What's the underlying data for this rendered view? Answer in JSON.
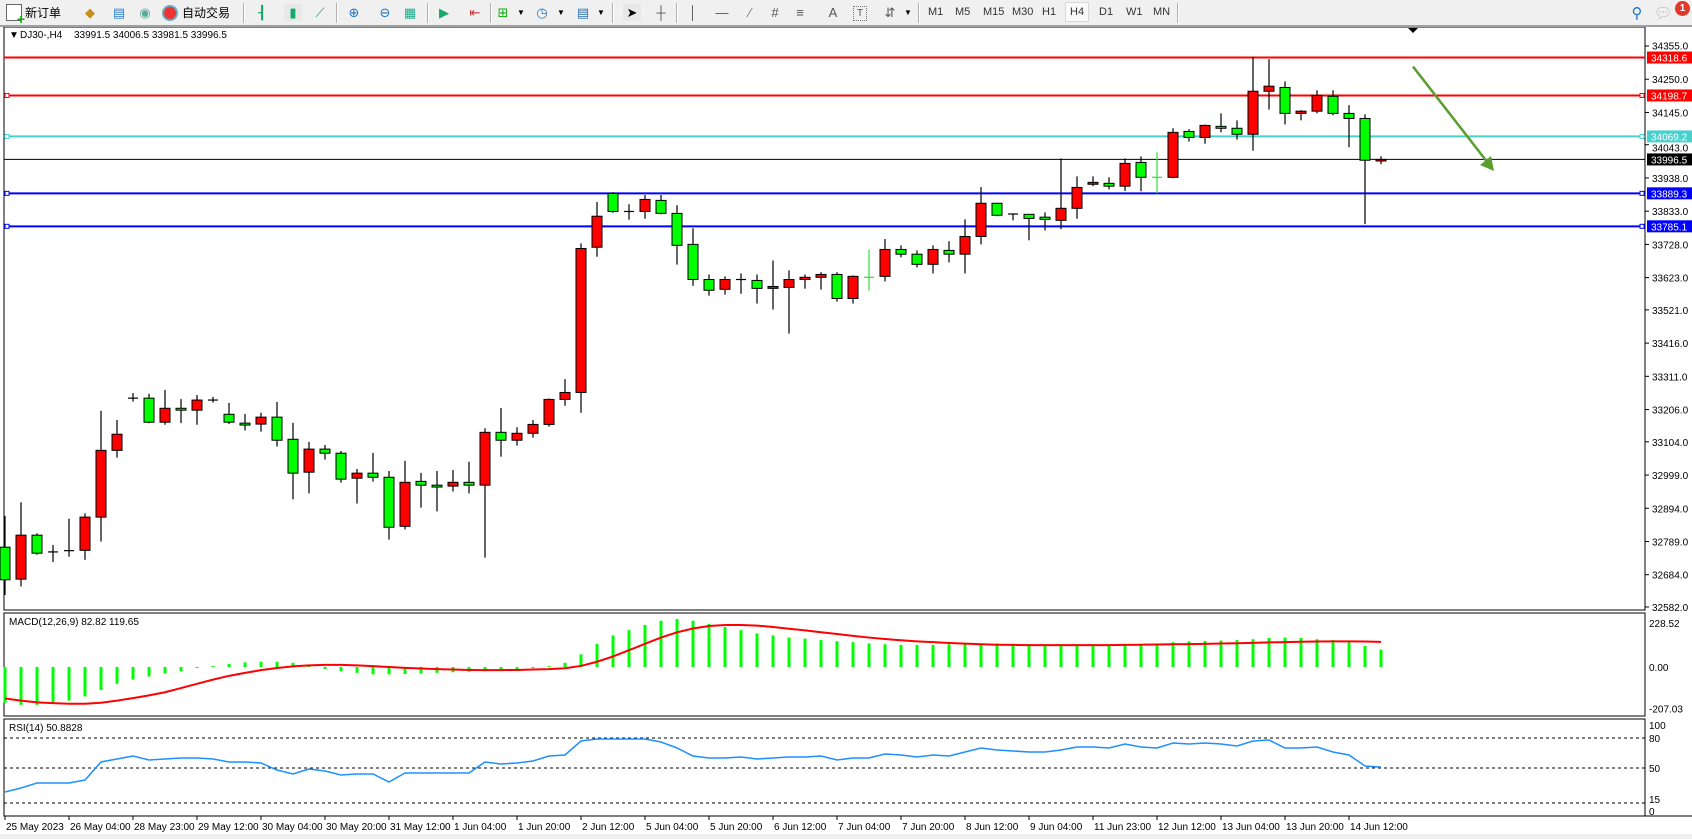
{
  "toolbar": {
    "new_order_label": "新订单",
    "auto_trading_label": "自动交易",
    "icons": [
      "new-order-icon",
      "metaeditor-icon",
      "market-watch-icon",
      "signals-icon",
      "auto-trading-icon",
      "bar-chart-icon",
      "candlestick-icon",
      "line-chart-icon",
      "zoom-in-icon",
      "zoom-out-icon",
      "tile-windows-icon",
      "autoscroll-icon",
      "chart-shift-icon",
      "new-chart-icon",
      "clock-icon",
      "indicators-icon",
      "cursor-icon",
      "crosshair-icon",
      "vertical-line-icon",
      "horizontal-line-icon",
      "trendline-icon",
      "equidistant-channel-icon",
      "fibonacci-icon",
      "text-icon",
      "text-label-icon",
      "arrows-icon",
      "search-icon",
      "chat-icon"
    ],
    "text_tool": "A",
    "timeframes": [
      "M1",
      "M5",
      "M15",
      "M30",
      "H1",
      "H4",
      "D1",
      "W1",
      "MN"
    ],
    "active_timeframe": "H4",
    "notification_count": "1"
  },
  "header": {
    "symbol": "DJ30-,H4",
    "ohlc": "33991.5 34006.5 33981.5 33996.5"
  },
  "colors": {
    "bull_body": "#ff0000",
    "bear_body": "#00ff00",
    "doji_alt": "#33dd33",
    "resistance": "#ff0000",
    "pivot": "#48d1cc",
    "support": "#0000ff",
    "bid": "#000000",
    "macd_hist": "#00ff00",
    "macd_signal": "#ff0000",
    "rsi": "#1e90ff",
    "arrow": "#5a9e2f"
  },
  "chart_data": [
    {
      "type": "candlestick",
      "title": "DJ30-,H4",
      "ylim": [
        32582,
        34355
      ],
      "price_ticks": [
        "34355.0",
        "34250.0",
        "34145.0",
        "34043.0",
        "33938.0",
        "33833.0",
        "33728.0",
        "33623.0",
        "33521.0",
        "33416.0",
        "33311.0",
        "33206.0",
        "33104.0",
        "32999.0",
        "32894.0",
        "32789.0",
        "32684.0",
        "32582.0"
      ],
      "time_labels": [
        "25 May 2023",
        "26 May 04:00",
        "28 May 23:00",
        "29 May 12:00",
        "30 May 04:00",
        "30 May 20:00",
        "31 May 12:00",
        "1 Jun 04:00",
        "1 Jun 20:00",
        "2 Jun 12:00",
        "5 Jun 04:00",
        "5 Jun 20:00",
        "6 Jun 12:00",
        "7 Jun 04:00",
        "7 Jun 20:00",
        "8 Jun 12:00",
        "9 Jun 04:00",
        "11 Jun 23:00",
        "12 Jun 12:00",
        "13 Jun 04:00",
        "13 Jun 20:00",
        "14 Jun 12:00"
      ],
      "alt_doji_bars": [
        54,
        72
      ],
      "candles_ohlc": [
        [
          32771,
          32870,
          32620,
          32668
        ],
        [
          32670,
          32913,
          32647,
          32809
        ],
        [
          32809,
          32815,
          32747,
          32752
        ],
        [
          32756,
          32778,
          32724,
          32756
        ],
        [
          32760,
          32861,
          32741,
          32760
        ],
        [
          32761,
          32878,
          32731,
          32866
        ],
        [
          32866,
          33202,
          32789,
          33077
        ],
        [
          33077,
          33173,
          33054,
          33128
        ],
        [
          33242,
          33258,
          33231,
          33242
        ],
        [
          33242,
          33256,
          33163,
          33166
        ],
        [
          33166,
          33268,
          33158,
          33210
        ],
        [
          33210,
          33239,
          33163,
          33204
        ],
        [
          33204,
          33252,
          33158,
          33236
        ],
        [
          33236,
          33246,
          33228,
          33236
        ],
        [
          33191,
          33227,
          33160,
          33166
        ],
        [
          33163,
          33192,
          33140,
          33157
        ],
        [
          33160,
          33196,
          33136,
          33182
        ],
        [
          33182,
          33230,
          33089,
          33109
        ],
        [
          33112,
          33164,
          32922,
          33005
        ],
        [
          33008,
          33104,
          32941,
          33081
        ],
        [
          33081,
          33094,
          33048,
          33068
        ],
        [
          33068,
          33075,
          32975,
          32986
        ],
        [
          32989,
          33018,
          32909,
          33005
        ],
        [
          33005,
          33069,
          32978,
          32992
        ],
        [
          32992,
          33012,
          32795,
          32834
        ],
        [
          32837,
          33044,
          32827,
          32976
        ],
        [
          32979,
          33006,
          32896,
          32967
        ],
        [
          32967,
          33012,
          32884,
          32961
        ],
        [
          32964,
          33015,
          32947,
          32976
        ],
        [
          32976,
          33041,
          32941,
          32967
        ],
        [
          32967,
          33147,
          32738,
          33134
        ],
        [
          33134,
          33211,
          33057,
          33109
        ],
        [
          33109,
          33150,
          33092,
          33131
        ],
        [
          33131,
          33173,
          33117,
          33159
        ],
        [
          33159,
          33241,
          33152,
          33238
        ],
        [
          33238,
          33302,
          33218,
          33260
        ],
        [
          33260,
          33731,
          33196,
          33715
        ],
        [
          33719,
          33862,
          33689,
          33817
        ],
        [
          33889,
          33893,
          33828,
          33832
        ],
        [
          33832,
          33855,
          33806,
          33832
        ],
        [
          33832,
          33884,
          33809,
          33870
        ],
        [
          33867,
          33884,
          33823,
          33826
        ],
        [
          33826,
          33852,
          33664,
          33725
        ],
        [
          33728,
          33779,
          33597,
          33617
        ],
        [
          33617,
          33633,
          33566,
          33583
        ],
        [
          33586,
          33627,
          33569,
          33617
        ],
        [
          33617,
          33636,
          33572,
          33617
        ],
        [
          33614,
          33633,
          33541,
          33589
        ],
        [
          33589,
          33677,
          33522,
          33595
        ],
        [
          33592,
          33646,
          33446,
          33617
        ],
        [
          33617,
          33633,
          33588,
          33624
        ],
        [
          33624,
          33640,
          33585,
          33633
        ],
        [
          33633,
          33640,
          33547,
          33557
        ],
        [
          33557,
          33630,
          33541,
          33627
        ],
        [
          33624,
          33712,
          33582,
          33624
        ],
        [
          33627,
          33745,
          33611,
          33712
        ],
        [
          33712,
          33725,
          33687,
          33697
        ],
        [
          33697,
          33709,
          33655,
          33665
        ],
        [
          33665,
          33725,
          33636,
          33712
        ],
        [
          33709,
          33738,
          33671,
          33697
        ],
        [
          33697,
          33807,
          33636,
          33753
        ],
        [
          33753,
          33909,
          33728,
          33858
        ],
        [
          33858,
          33858,
          33817,
          33820
        ],
        [
          33824,
          33826,
          33804,
          33824
        ],
        [
          33823,
          33823,
          33741,
          33810
        ],
        [
          33814,
          33829,
          33772,
          33807
        ],
        [
          33804,
          34000,
          33776,
          33842
        ],
        [
          33842,
          33943,
          33809,
          33908
        ],
        [
          33918,
          33943,
          33912,
          33924
        ],
        [
          33921,
          33940,
          33902,
          33912
        ],
        [
          33912,
          34000,
          33897,
          33984
        ],
        [
          33987,
          34006,
          33896,
          33940
        ],
        [
          33940,
          34019,
          33889,
          33940
        ],
        [
          33940,
          34095,
          33937,
          34082
        ],
        [
          34085,
          34092,
          34053,
          34066
        ],
        [
          34066,
          34107,
          34046,
          34104
        ],
        [
          34101,
          34142,
          34082,
          34095
        ],
        [
          34095,
          34120,
          34059,
          34076
        ],
        [
          34076,
          34321,
          34024,
          34212
        ],
        [
          34212,
          34313,
          34154,
          34228
        ],
        [
          34224,
          34243,
          34107,
          34142
        ],
        [
          34142,
          34152,
          34120,
          34149
        ],
        [
          34149,
          34215,
          34142,
          34199
        ],
        [
          34196,
          34215,
          34136,
          34142
        ],
        [
          34142,
          34168,
          34035,
          34126
        ],
        [
          34126,
          34139,
          33792,
          33994
        ],
        [
          33991.5,
          34006.5,
          33981.5,
          33996.5
        ]
      ],
      "levels": [
        {
          "price": 34318.6,
          "label": "34318.6",
          "kind": "resistance",
          "handles": false
        },
        {
          "price": 34198.7,
          "label": "34198.7",
          "kind": "resistance",
          "handles": true
        },
        {
          "price": 34069.2,
          "label": "34069.2",
          "kind": "pivot",
          "handles": true
        },
        {
          "price": 33996.5,
          "label": "33996.5",
          "kind": "bid",
          "handles": false
        },
        {
          "price": 33889.3,
          "label": "33889.3",
          "kind": "support",
          "handles": true
        },
        {
          "price": 33785.1,
          "label": "33785.1",
          "kind": "support",
          "handles": true
        }
      ],
      "annotation_arrow": {
        "direction": "down-right",
        "from_price": 34290,
        "to_price": 33960
      }
    },
    {
      "type": "bar+line",
      "title": "MACD(12,26,9) 82.82 119.65",
      "ylim": [
        -207.03,
        228.52
      ],
      "tick_labels": [
        "228.52",
        "0.00",
        "-207.03"
      ],
      "histogram": [
        -170,
        -180,
        -180,
        -175,
        -160,
        -140,
        -110,
        -80,
        -60,
        -45,
        -30,
        -20,
        -5,
        5,
        15,
        22,
        25,
        25,
        20,
        5,
        -10,
        -20,
        -28,
        -35,
        -35,
        -33,
        -32,
        -28,
        -25,
        -22,
        -20,
        -15,
        -10,
        -5,
        5,
        20,
        60,
        110,
        150,
        175,
        200,
        220,
        228,
        220,
        205,
        190,
        175,
        160,
        150,
        140,
        135,
        128,
        122,
        118,
        112,
        108,
        105,
        105,
        105,
        108,
        110,
        112,
        112,
        110,
        108,
        106,
        105,
        105,
        106,
        107,
        108,
        110,
        112,
        118,
        122,
        124,
        126,
        128,
        132,
        138,
        140,
        138,
        132,
        128,
        120,
        100,
        82.82
      ],
      "signal": [
        -150,
        -160,
        -168,
        -172,
        -175,
        -175,
        -170,
        -160,
        -148,
        -135,
        -120,
        -100,
        -80,
        -60,
        -42,
        -28,
        -15,
        -5,
        3,
        8,
        10,
        10,
        8,
        4,
        0,
        -4,
        -7,
        -10,
        -12,
        -14,
        -15,
        -15,
        -14,
        -12,
        -10,
        -6,
        5,
        25,
        50,
        80,
        110,
        140,
        165,
        183,
        195,
        200,
        200,
        197,
        190,
        182,
        174,
        165,
        157,
        148,
        140,
        133,
        127,
        122,
        118,
        114,
        111,
        108,
        106,
        105,
        104,
        104,
        104,
        104,
        104,
        104,
        105,
        106,
        107,
        108,
        109,
        110,
        112,
        113,
        115,
        117,
        118,
        120,
        121,
        122,
        122,
        121,
        119.65
      ]
    },
    {
      "type": "line",
      "title": "RSI(14) 50.8828",
      "ylim": [
        0,
        100
      ],
      "tick_labels": [
        "100",
        "80",
        "50",
        "15",
        "0"
      ],
      "levels": [
        80,
        50,
        15
      ],
      "values": [
        26,
        30,
        35,
        35,
        35,
        38,
        56,
        59,
        62,
        58,
        59,
        60,
        60,
        59,
        56,
        56,
        55,
        48,
        44,
        49,
        47,
        43,
        44,
        44,
        36,
        45,
        45,
        45,
        45,
        45,
        56,
        54,
        55,
        57,
        62,
        63,
        77,
        79,
        79,
        79,
        79,
        76,
        70,
        62,
        60,
        60,
        61,
        59,
        60,
        61,
        61,
        62,
        58,
        60,
        60,
        64,
        63,
        61,
        63,
        62,
        66,
        70,
        68,
        67,
        66,
        66,
        68,
        71,
        71,
        70,
        74,
        71,
        70,
        75,
        74,
        75,
        74,
        72,
        77,
        78,
        70,
        70,
        71,
        66,
        63,
        52,
        50.88
      ]
    }
  ]
}
